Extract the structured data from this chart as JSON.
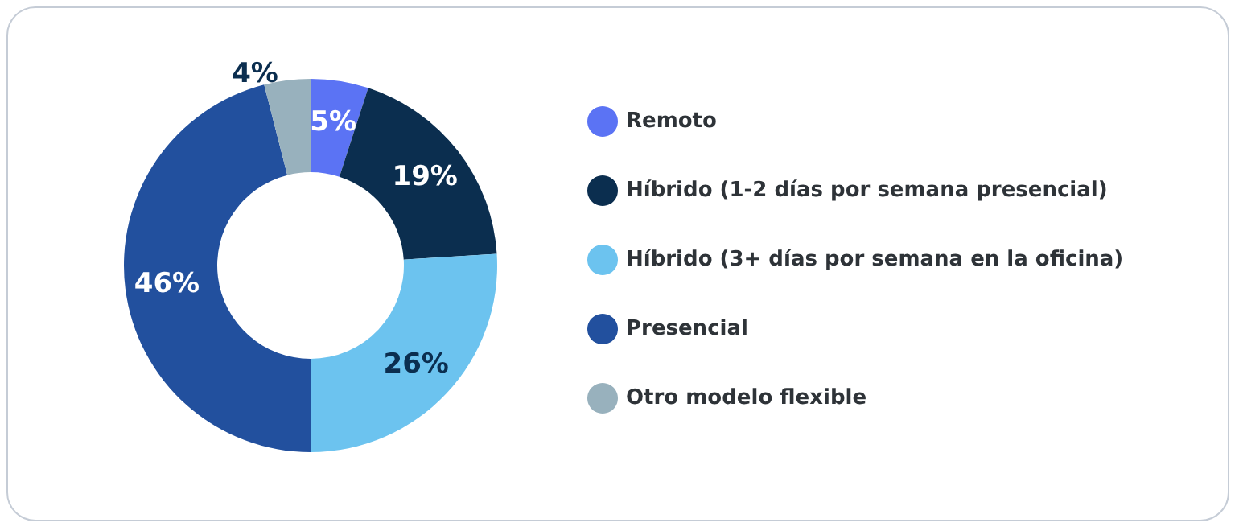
{
  "chart_data": {
    "type": "donut",
    "categories": [
      "Remoto",
      "Híbrido (1-2 días por semana presencial)",
      "Híbrido (3+ días por semana en la oficina)",
      "Presencial",
      "Otro modelo flexible"
    ],
    "values": [
      5,
      19,
      26,
      46,
      4
    ],
    "colors": [
      "#5b73f4",
      "#0b2e4f",
      "#6cc3ef",
      "#22509e",
      "#98b1bd"
    ],
    "value_labels": [
      "5%",
      "19%",
      "26%",
      "46%",
      "4%"
    ],
    "legend": "right"
  }
}
